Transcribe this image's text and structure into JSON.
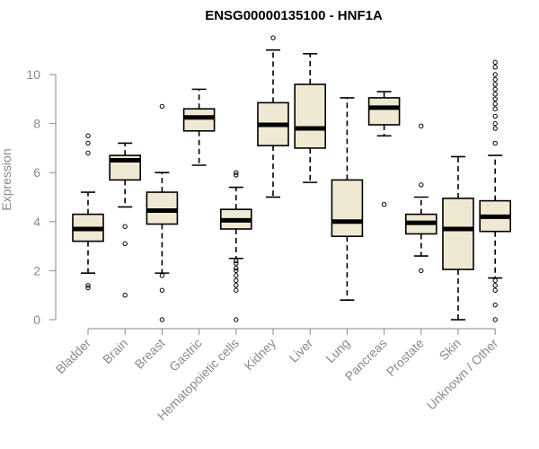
{
  "chart_data": {
    "type": "boxplot",
    "title": "ENSG00000135100 - HNF1A",
    "ylabel": "Expression",
    "xlabel": "",
    "ylim": [
      0,
      10.5
    ],
    "yticks": [
      0,
      2,
      4,
      6,
      8,
      10
    ],
    "categories": [
      "Bladder",
      "Brain",
      "Breast",
      "Gastric",
      "Hematopoietic cells",
      "Kidney",
      "Liver",
      "Lung",
      "Pancreas",
      "Prostate",
      "Skin",
      "Unknown / Other"
    ],
    "boxes": [
      {
        "name": "Bladder",
        "whisker_low": 1.9,
        "q1": 3.2,
        "median": 3.7,
        "q3": 4.3,
        "whisker_high": 5.2,
        "outliers": [
          1.3,
          1.4,
          6.8,
          7.2,
          7.5
        ]
      },
      {
        "name": "Brain",
        "whisker_low": 4.6,
        "q1": 5.7,
        "median": 6.5,
        "q3": 6.7,
        "whisker_high": 7.2,
        "outliers": [
          1.0,
          3.1,
          3.8
        ]
      },
      {
        "name": "Breast",
        "whisker_low": 1.9,
        "q1": 3.9,
        "median": 4.45,
        "q3": 5.2,
        "whisker_high": 6.0,
        "outliers": [
          0.0,
          1.2,
          1.8,
          8.7
        ]
      },
      {
        "name": "Gastric",
        "whisker_low": 6.3,
        "q1": 7.7,
        "median": 8.25,
        "q3": 8.6,
        "whisker_high": 9.4,
        "outliers": []
      },
      {
        "name": "Hematopoietic cells",
        "whisker_low": 2.5,
        "q1": 3.7,
        "median": 4.05,
        "q3": 4.5,
        "whisker_high": 5.4,
        "outliers": [
          0.0,
          1.2,
          1.4,
          1.6,
          1.8,
          2.0,
          2.1,
          2.3,
          2.4,
          5.9,
          6.0
        ]
      },
      {
        "name": "Kidney",
        "whisker_low": 5.0,
        "q1": 7.1,
        "median": 7.95,
        "q3": 8.85,
        "whisker_high": 11.0,
        "outliers": [
          11.5
        ]
      },
      {
        "name": "Liver",
        "whisker_low": 5.6,
        "q1": 7.0,
        "median": 7.8,
        "q3": 9.6,
        "whisker_high": 10.85,
        "outliers": []
      },
      {
        "name": "Lung",
        "whisker_low": 0.8,
        "q1": 3.4,
        "median": 4.0,
        "q3": 5.7,
        "whisker_high": 9.05,
        "outliers": []
      },
      {
        "name": "Pancreas",
        "whisker_low": 7.5,
        "q1": 7.95,
        "median": 8.65,
        "q3": 9.05,
        "whisker_high": 9.3,
        "outliers": [
          4.7
        ]
      },
      {
        "name": "Prostate",
        "whisker_low": 2.6,
        "q1": 3.5,
        "median": 3.95,
        "q3": 4.3,
        "whisker_high": 5.0,
        "outliers": [
          2.0,
          5.5,
          7.9
        ]
      },
      {
        "name": "Skin",
        "whisker_low": 0.0,
        "q1": 2.05,
        "median": 3.7,
        "q3": 4.95,
        "whisker_high": 6.65,
        "outliers": []
      },
      {
        "name": "Unknown / Other",
        "whisker_low": 1.7,
        "q1": 3.6,
        "median": 4.2,
        "q3": 4.85,
        "whisker_high": 6.7,
        "outliers": [
          0.0,
          0.6,
          1.2,
          1.4,
          1.6,
          7.2,
          7.8,
          8.0,
          8.3,
          8.6,
          8.8,
          9.0,
          9.2,
          9.4,
          9.6,
          9.8,
          10.0,
          10.3,
          10.5
        ]
      }
    ]
  }
}
